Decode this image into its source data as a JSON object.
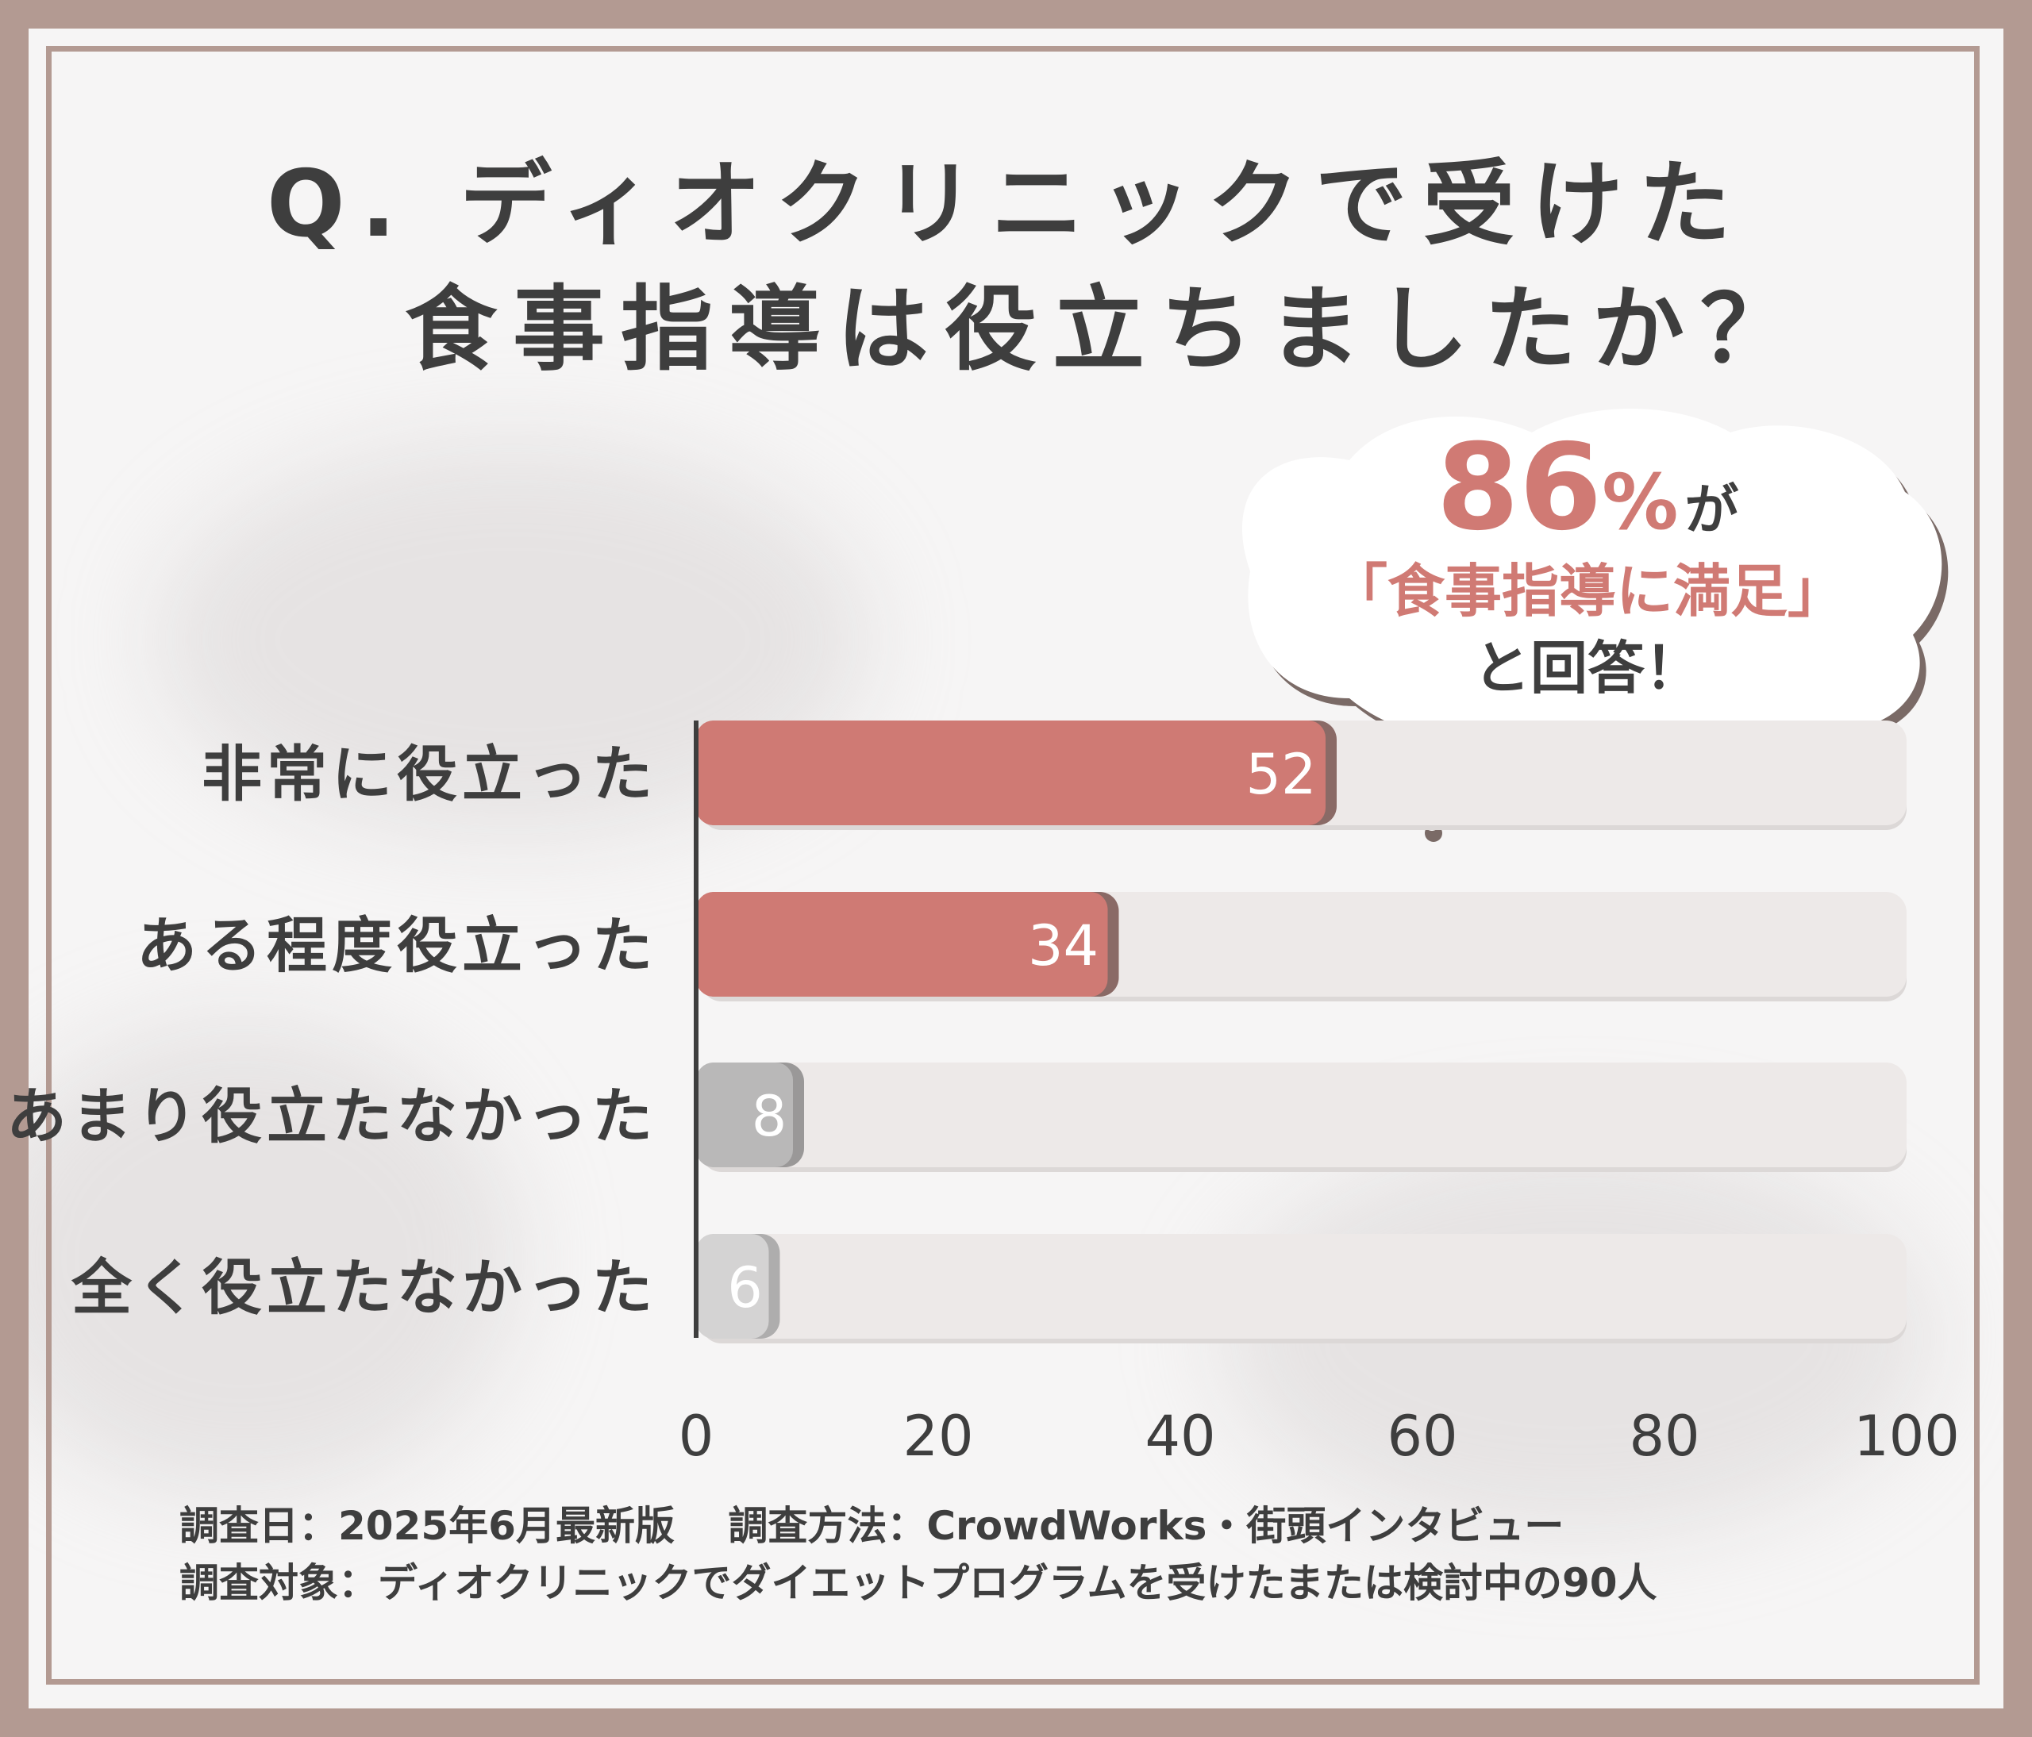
{
  "title": {
    "line1": "Q. ディオクリニックで受けた",
    "line2": "食事指導は役立ちましたか？"
  },
  "callout": {
    "percent": "86",
    "percent_unit": "%",
    "suffix": "が",
    "line2": "「食事指導に満足」",
    "line3": "と回答！"
  },
  "chart_data": {
    "type": "bar",
    "orientation": "horizontal",
    "categories": [
      "非常に役立った",
      "ある程度役立った",
      "あまり役立たなかった",
      "全く役立たなかった"
    ],
    "values": [
      52,
      34,
      8,
      6
    ],
    "xlim": [
      0,
      100
    ],
    "xticks": [
      "0",
      "20",
      "40",
      "60",
      "80",
      "100"
    ],
    "grid": false,
    "colors": {
      "positive": "#cf7a74",
      "positive_shadow": "#8a6a66",
      "negative_8": "#b9b8b8",
      "negative_6": "#d4d3d3",
      "track": "#ede9e8",
      "axis": "#3e3e3e"
    }
  },
  "footnotes": {
    "line1": "調査日：2025年6月最新版　 調査方法：CrowdWorks・街頭インタビュー",
    "line2": "調査対象：ディオクリニックでダイエットプログラムを受けたまたは検討中の90人"
  }
}
